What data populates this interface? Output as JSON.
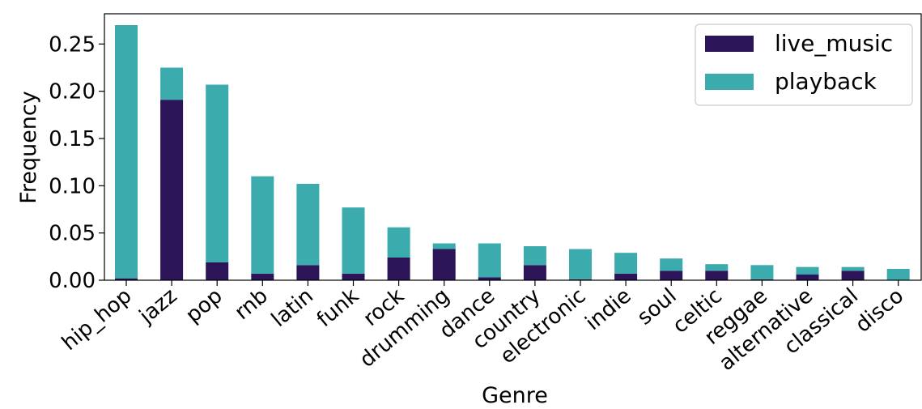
{
  "chart_data": {
    "type": "bar",
    "stacked": true,
    "title": "",
    "xlabel": "Genre",
    "ylabel": "Frequency",
    "ylim": [
      0,
      0.282
    ],
    "yticks": [
      "0.00",
      "0.05",
      "0.10",
      "0.15",
      "0.20",
      "0.25"
    ],
    "ytick_values": [
      0,
      0.05,
      0.1,
      0.15,
      0.2,
      0.25
    ],
    "legend_position": "top-right",
    "grid": false,
    "categories": [
      "hip_hop",
      "jazz",
      "pop",
      "rnb",
      "latin",
      "funk",
      "rock",
      "drumming",
      "dance",
      "country",
      "electronic",
      "indie",
      "soul",
      "celtic",
      "reggae",
      "alternative",
      "classical",
      "disco"
    ],
    "series": [
      {
        "name": "live_music",
        "color": "#2b1457",
        "values": [
          0.002,
          0.191,
          0.019,
          0.007,
          0.016,
          0.007,
          0.024,
          0.033,
          0.003,
          0.016,
          0.001,
          0.007,
          0.01,
          0.01,
          0.001,
          0.006,
          0.01,
          0.0
        ]
      },
      {
        "name": "playback",
        "color": "#3cabad",
        "values": [
          0.268,
          0.034,
          0.188,
          0.103,
          0.086,
          0.07,
          0.032,
          0.006,
          0.036,
          0.02,
          0.032,
          0.022,
          0.013,
          0.007,
          0.015,
          0.008,
          0.004,
          0.012
        ]
      }
    ]
  }
}
